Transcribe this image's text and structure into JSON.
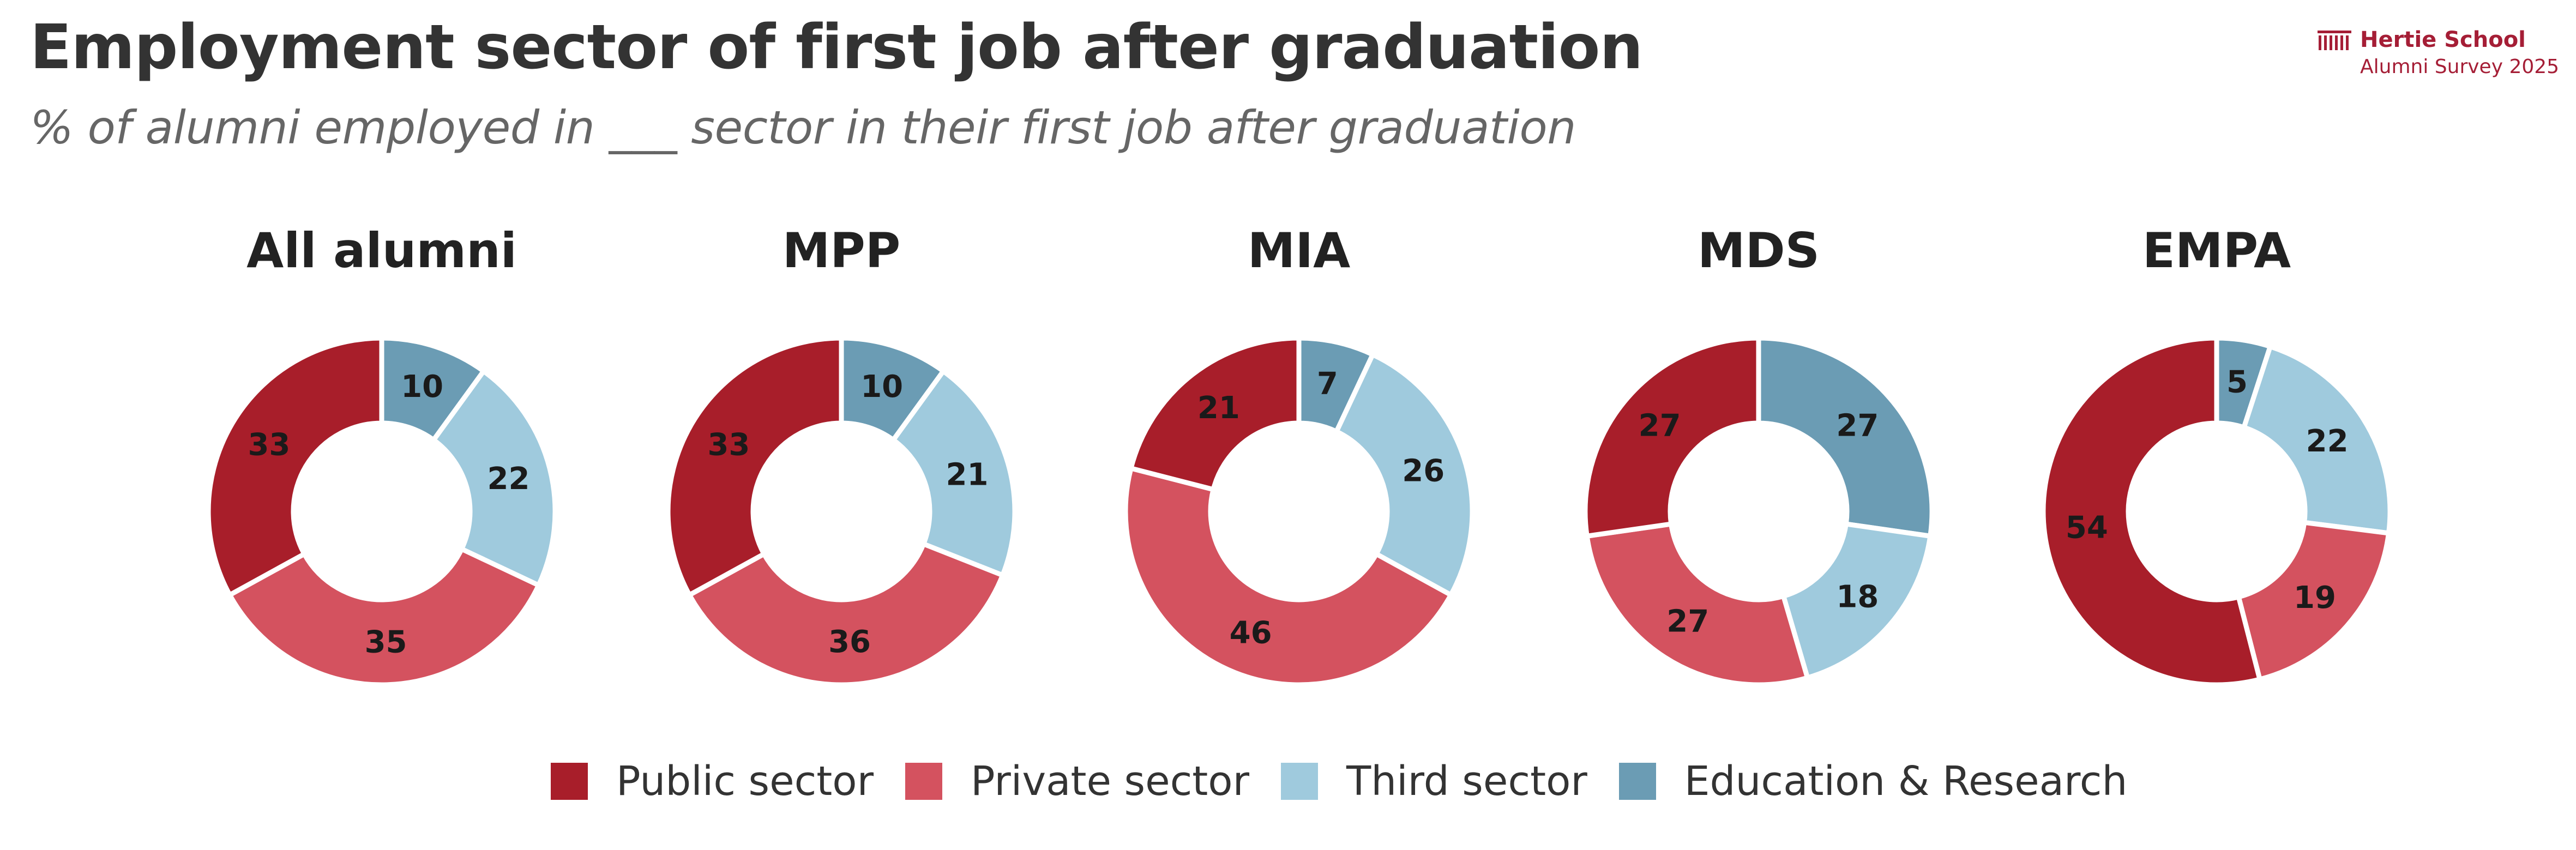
{
  "title": "Employment sector of first job after graduation",
  "subtitle": "% of alumni employed in ___ sector in their first job after graduation",
  "logo": {
    "name": "Hertie School",
    "sub": "Alumni Survey 2025"
  },
  "colors": {
    "Public sector": "#a81e2a",
    "Private sector": "#d4525f",
    "Third sector": "#9fcadd",
    "Education & Research": "#6b9cb4"
  },
  "chart_data": [
    {
      "type": "pie",
      "title": "All alumni",
      "categories": [
        "Education & Research",
        "Third sector",
        "Private sector",
        "Public sector"
      ],
      "values": [
        10,
        22,
        35,
        33
      ]
    },
    {
      "type": "pie",
      "title": "MPP",
      "categories": [
        "Education & Research",
        "Third sector",
        "Private sector",
        "Public sector"
      ],
      "values": [
        10,
        21,
        36,
        33
      ]
    },
    {
      "type": "pie",
      "title": "MIA",
      "categories": [
        "Education & Research",
        "Third sector",
        "Private sector",
        "Public sector"
      ],
      "values": [
        7,
        26,
        46,
        21
      ]
    },
    {
      "type": "pie",
      "title": "MDS",
      "categories": [
        "Education & Research",
        "Third sector",
        "Private sector",
        "Public sector"
      ],
      "values": [
        27,
        18,
        27,
        27
      ]
    },
    {
      "type": "pie",
      "title": "EMPA",
      "categories": [
        "Education & Research",
        "Third sector",
        "Private sector",
        "Public sector"
      ],
      "values": [
        5,
        22,
        19,
        54
      ]
    }
  ],
  "legend": [
    "Public sector",
    "Private sector",
    "Third sector",
    "Education & Research"
  ]
}
